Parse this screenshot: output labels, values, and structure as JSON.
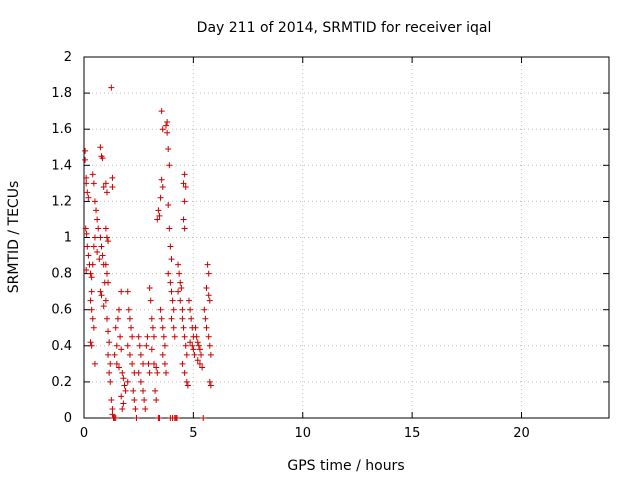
{
  "chart_data": {
    "type": "scatter",
    "title": "Day 211 of 2014, SRMTID for receiver iqal",
    "xlabel": "GPS time / hours",
    "ylabel": "SRMTID / TECUs",
    "xlim": [
      0,
      24
    ],
    "ylim": [
      0,
      2
    ],
    "xticks": [
      0,
      5,
      10,
      15,
      20
    ],
    "xtick_labels": [
      "0",
      "5",
      "10",
      "15",
      "20"
    ],
    "yticks": [
      0,
      0.2,
      0.4,
      0.6,
      0.8,
      1,
      1.2,
      1.4,
      1.6,
      1.8,
      2
    ],
    "ytick_labels": [
      "0",
      "0.2",
      "0.4",
      "0.6",
      "0.8",
      "1",
      "1.2",
      "1.4",
      "1.6",
      "1.8",
      "2"
    ],
    "grid": true,
    "marker": "+",
    "series": [
      {
        "name": "SRMTID",
        "color": "#cc0000",
        "points": [
          [
            0.05,
            1.48
          ],
          [
            0.05,
            1.43
          ],
          [
            0.1,
            1.33
          ],
          [
            0.1,
            1.3
          ],
          [
            0.15,
            1.25
          ],
          [
            0.2,
            1.22
          ],
          [
            0.08,
            1.05
          ],
          [
            0.12,
            1.02
          ],
          [
            0.15,
            0.95
          ],
          [
            0.2,
            0.9
          ],
          [
            0.25,
            0.85
          ],
          [
            0.1,
            0.82
          ],
          [
            0.3,
            0.8
          ],
          [
            0.35,
            0.78
          ],
          [
            0.4,
            1.35
          ],
          [
            0.45,
            1.3
          ],
          [
            0.5,
            1.2
          ],
          [
            0.55,
            1.15
          ],
          [
            0.6,
            1.1
          ],
          [
            0.65,
            1.05
          ],
          [
            0.5,
            1.0
          ],
          [
            0.45,
            0.95
          ],
          [
            0.6,
            0.92
          ],
          [
            0.7,
            0.88
          ],
          [
            0.4,
            0.85
          ],
          [
            0.35,
            0.7
          ],
          [
            0.3,
            0.65
          ],
          [
            0.35,
            0.6
          ],
          [
            0.4,
            0.55
          ],
          [
            0.45,
            0.5
          ],
          [
            0.3,
            0.42
          ],
          [
            0.35,
            0.4
          ],
          [
            0.5,
            0.3
          ],
          [
            0.75,
            1.5
          ],
          [
            0.8,
            1.45
          ],
          [
            0.85,
            1.44
          ],
          [
            0.9,
            1.28
          ],
          [
            0.75,
            1.0
          ],
          [
            0.8,
            0.95
          ],
          [
            0.85,
            0.9
          ],
          [
            0.9,
            0.85
          ],
          [
            0.95,
            0.75
          ],
          [
            0.75,
            0.7
          ],
          [
            0.8,
            0.68
          ],
          [
            0.9,
            0.62
          ],
          [
            1.0,
            1.3
          ],
          [
            1.05,
            1.25
          ],
          [
            1.0,
            1.05
          ],
          [
            1.05,
            1.0
          ],
          [
            1.1,
            0.98
          ],
          [
            1.0,
            0.85
          ],
          [
            1.05,
            0.8
          ],
          [
            1.1,
            0.75
          ],
          [
            1.0,
            0.65
          ],
          [
            1.05,
            0.55
          ],
          [
            1.1,
            0.48
          ],
          [
            1.15,
            0.42
          ],
          [
            1.1,
            0.35
          ],
          [
            1.2,
            0.3
          ],
          [
            1.15,
            0.25
          ],
          [
            1.2,
            0.2
          ],
          [
            1.25,
            1.83
          ],
          [
            1.3,
            1.33
          ],
          [
            1.3,
            1.28
          ],
          [
            1.25,
            0.1
          ],
          [
            1.3,
            0.05
          ],
          [
            1.3,
            0.02
          ],
          [
            1.35,
            0.0
          ],
          [
            1.4,
            0.0
          ],
          [
            1.45,
            0.0
          ],
          [
            1.4,
            0.35
          ],
          [
            1.5,
            0.4
          ],
          [
            1.45,
            0.5
          ],
          [
            1.55,
            0.55
          ],
          [
            1.6,
            0.6
          ],
          [
            1.5,
            0.3
          ],
          [
            1.6,
            0.28
          ],
          [
            1.7,
            0.7
          ],
          [
            1.65,
            0.45
          ],
          [
            1.7,
            0.38
          ],
          [
            1.75,
            0.25
          ],
          [
            1.8,
            0.22
          ],
          [
            1.85,
            0.18
          ],
          [
            1.9,
            0.15
          ],
          [
            1.7,
            0.12
          ],
          [
            1.8,
            0.08
          ],
          [
            1.75,
            0.05
          ],
          [
            2.0,
            0.7
          ],
          [
            2.05,
            0.6
          ],
          [
            2.1,
            0.55
          ],
          [
            2.15,
            0.5
          ],
          [
            2.2,
            0.45
          ],
          [
            2.0,
            0.4
          ],
          [
            2.1,
            0.35
          ],
          [
            2.2,
            0.3
          ],
          [
            2.3,
            0.25
          ],
          [
            2.0,
            0.2
          ],
          [
            2.25,
            0.15
          ],
          [
            2.3,
            0.1
          ],
          [
            2.35,
            0.05
          ],
          [
            2.4,
            0.0
          ],
          [
            2.5,
            0.45
          ],
          [
            2.55,
            0.4
          ],
          [
            2.6,
            0.35
          ],
          [
            2.7,
            0.3
          ],
          [
            2.5,
            0.25
          ],
          [
            2.6,
            0.2
          ],
          [
            2.7,
            0.15
          ],
          [
            2.75,
            0.1
          ],
          [
            2.8,
            0.05
          ],
          [
            2.85,
            0.4
          ],
          [
            2.9,
            0.45
          ],
          [
            2.95,
            0.3
          ],
          [
            3.0,
            0.25
          ],
          [
            3.0,
            0.72
          ],
          [
            3.05,
            0.65
          ],
          [
            3.1,
            0.55
          ],
          [
            3.15,
            0.5
          ],
          [
            3.2,
            0.45
          ],
          [
            3.1,
            0.38
          ],
          [
            3.2,
            0.3
          ],
          [
            3.3,
            0.28
          ],
          [
            3.35,
            0.25
          ],
          [
            3.25,
            0.15
          ],
          [
            3.3,
            0.1
          ],
          [
            3.4,
            0.0
          ],
          [
            3.45,
            0.0
          ],
          [
            3.35,
            1.1
          ],
          [
            3.4,
            1.15
          ],
          [
            3.45,
            1.12
          ],
          [
            3.5,
            1.22
          ],
          [
            3.55,
            1.7
          ],
          [
            3.6,
            1.6
          ],
          [
            3.55,
            1.32
          ],
          [
            3.6,
            1.28
          ],
          [
            3.5,
            0.6
          ],
          [
            3.55,
            0.55
          ],
          [
            3.6,
            0.5
          ],
          [
            3.65,
            0.45
          ],
          [
            3.7,
            0.4
          ],
          [
            3.6,
            0.35
          ],
          [
            3.7,
            0.3
          ],
          [
            3.75,
            0.25
          ],
          [
            3.8,
            1.64
          ],
          [
            3.75,
            1.62
          ],
          [
            3.8,
            1.58
          ],
          [
            3.85,
            1.49
          ],
          [
            3.9,
            1.4
          ],
          [
            3.85,
            1.18
          ],
          [
            3.9,
            1.05
          ],
          [
            3.95,
            0.95
          ],
          [
            4.0,
            0.88
          ],
          [
            3.85,
            0.8
          ],
          [
            3.95,
            0.75
          ],
          [
            4.0,
            0.7
          ],
          [
            4.05,
            0.65
          ],
          [
            4.1,
            0.6
          ],
          [
            4.0,
            0.55
          ],
          [
            4.1,
            0.5
          ],
          [
            4.15,
            0.45
          ],
          [
            3.95,
            0.0
          ],
          [
            4.05,
            0.0
          ],
          [
            4.15,
            0.0
          ],
          [
            4.2,
            0.0
          ],
          [
            4.25,
            0.0
          ],
          [
            4.3,
            0.85
          ],
          [
            4.35,
            0.8
          ],
          [
            4.4,
            0.75
          ],
          [
            4.45,
            0.72
          ],
          [
            4.3,
            0.7
          ],
          [
            4.4,
            0.65
          ],
          [
            4.5,
            0.6
          ],
          [
            4.55,
            1.3
          ],
          [
            4.6,
            1.35
          ],
          [
            4.65,
            1.28
          ],
          [
            4.6,
            1.2
          ],
          [
            4.55,
            1.1
          ],
          [
            4.6,
            1.05
          ],
          [
            4.5,
            0.55
          ],
          [
            4.55,
            0.5
          ],
          [
            4.6,
            0.45
          ],
          [
            4.65,
            0.4
          ],
          [
            4.7,
            0.35
          ],
          [
            4.5,
            0.3
          ],
          [
            4.6,
            0.25
          ],
          [
            4.7,
            0.2
          ],
          [
            4.75,
            0.18
          ],
          [
            4.8,
            0.65
          ],
          [
            4.85,
            0.6
          ],
          [
            4.9,
            0.55
          ],
          [
            4.95,
            0.5
          ],
          [
            5.0,
            0.45
          ],
          [
            4.85,
            0.42
          ],
          [
            4.95,
            0.4
          ],
          [
            5.0,
            0.38
          ],
          [
            5.05,
            0.35
          ],
          [
            5.1,
            0.5
          ],
          [
            5.15,
            0.45
          ],
          [
            5.2,
            0.42
          ],
          [
            5.25,
            0.4
          ],
          [
            5.3,
            0.38
          ],
          [
            5.35,
            0.35
          ],
          [
            5.2,
            0.32
          ],
          [
            5.3,
            0.3
          ],
          [
            5.4,
            0.28
          ],
          [
            5.45,
            0.0
          ],
          [
            5.5,
            0.6
          ],
          [
            5.55,
            0.55
          ],
          [
            5.6,
            0.5
          ],
          [
            5.65,
            0.85
          ],
          [
            5.7,
            0.8
          ],
          [
            5.6,
            0.72
          ],
          [
            5.7,
            0.68
          ],
          [
            5.75,
            0.65
          ],
          [
            5.7,
            0.45
          ],
          [
            5.75,
            0.4
          ],
          [
            5.8,
            0.35
          ],
          [
            5.75,
            0.2
          ],
          [
            5.8,
            0.18
          ]
        ]
      }
    ]
  }
}
